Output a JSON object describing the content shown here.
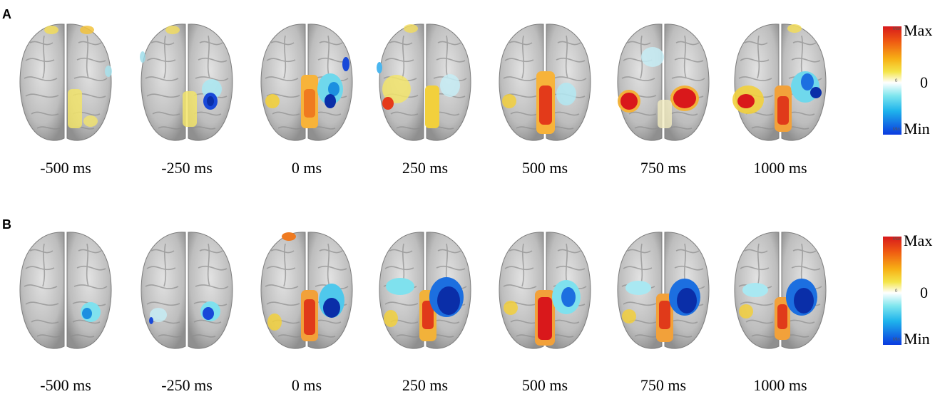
{
  "panels": [
    {
      "label": "A",
      "times": [
        "-500 ms",
        "-250 ms",
        "0 ms",
        "250 ms",
        "500 ms",
        "750 ms",
        "1000 ms"
      ],
      "colorbar": {
        "max": "Max",
        "zero": "0",
        "min": "Min",
        "max_small": "Max",
        "zero_small": "0",
        "min_small": "Min"
      }
    },
    {
      "label": "B",
      "times": [
        "-500 ms",
        "-250 ms",
        "0 ms",
        "250 ms",
        "500 ms",
        "750 ms",
        "1000 ms"
      ],
      "colorbar": {
        "max": "Max",
        "zero": "0",
        "min": "Min",
        "max_small": "Max",
        "zero_small": "0",
        "min_small": "Min"
      }
    }
  ],
  "colors": {
    "max": "#d7191c",
    "zero": "#ffffff",
    "min": "#0a3adf",
    "brain": "#bdbdbd"
  }
}
